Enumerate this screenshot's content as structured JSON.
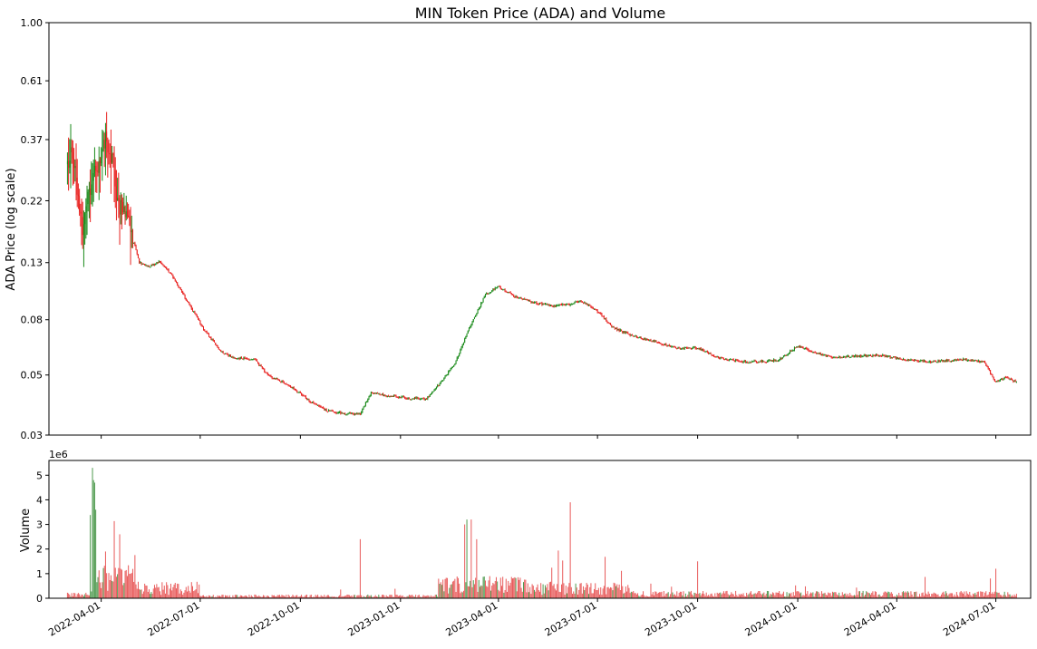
{
  "chart_data": {
    "type": "candlestick",
    "title": "MIN Token Price (ADA) and Volume",
    "price_panel": {
      "ylabel": "ADA Price (log scale)",
      "yscale": "log",
      "ylim": [
        0.03,
        1.0
      ],
      "yticks": [
        "0.03",
        "0.05",
        "0.08",
        "0.13",
        "0.22",
        "0.37",
        "0.61",
        "1.00"
      ],
      "ytick_values": [
        0.03,
        0.05,
        0.08,
        0.13,
        0.22,
        0.37,
        0.61,
        1.0
      ],
      "up_color": "#1a8a1a",
      "down_color": "#e8211f",
      "approx_close_path": [
        [
          "2022-03-01",
          0.3
        ],
        [
          "2022-03-05",
          0.34
        ],
        [
          "2022-03-10",
          0.25
        ],
        [
          "2022-03-15",
          0.18
        ],
        [
          "2022-03-20",
          0.22
        ],
        [
          "2022-03-25",
          0.27
        ],
        [
          "2022-04-01",
          0.31
        ],
        [
          "2022-04-05",
          0.38
        ],
        [
          "2022-04-08",
          0.33
        ],
        [
          "2022-04-12",
          0.3
        ],
        [
          "2022-04-15",
          0.21
        ],
        [
          "2022-04-22",
          0.21
        ],
        [
          "2022-04-30",
          0.16
        ],
        [
          "2022-05-06",
          0.13
        ],
        [
          "2022-05-15",
          0.126
        ],
        [
          "2022-05-25",
          0.131
        ],
        [
          "2022-06-05",
          0.117
        ],
        [
          "2022-06-20",
          0.092
        ],
        [
          "2022-07-05",
          0.073
        ],
        [
          "2022-07-20",
          0.061
        ],
        [
          "2022-08-01",
          0.058
        ],
        [
          "2022-08-20",
          0.057
        ],
        [
          "2022-09-01",
          0.05
        ],
        [
          "2022-09-20",
          0.046
        ],
        [
          "2022-10-10",
          0.04
        ],
        [
          "2022-10-25",
          0.037
        ],
        [
          "2022-11-10",
          0.036
        ],
        [
          "2022-11-25",
          0.036
        ],
        [
          "2022-12-05",
          0.043
        ],
        [
          "2022-12-20",
          0.042
        ],
        [
          "2023-01-10",
          0.041
        ],
        [
          "2023-01-25",
          0.041
        ],
        [
          "2023-02-05",
          0.046
        ],
        [
          "2023-02-20",
          0.055
        ],
        [
          "2023-03-01",
          0.068
        ],
        [
          "2023-03-10",
          0.082
        ],
        [
          "2023-03-20",
          0.099
        ],
        [
          "2023-04-01",
          0.106
        ],
        [
          "2023-04-15",
          0.098
        ],
        [
          "2023-05-01",
          0.093
        ],
        [
          "2023-05-20",
          0.09
        ],
        [
          "2023-06-05",
          0.091
        ],
        [
          "2023-06-15",
          0.094
        ],
        [
          "2023-07-01",
          0.086
        ],
        [
          "2023-07-15",
          0.075
        ],
        [
          "2023-08-01",
          0.07
        ],
        [
          "2023-08-20",
          0.067
        ],
        [
          "2023-09-10",
          0.063
        ],
        [
          "2023-10-01",
          0.063
        ],
        [
          "2023-10-20",
          0.058
        ],
        [
          "2023-11-10",
          0.056
        ],
        [
          "2023-12-01",
          0.056
        ],
        [
          "2023-12-15",
          0.057
        ],
        [
          "2024-01-01",
          0.064
        ],
        [
          "2024-01-15",
          0.061
        ],
        [
          "2024-02-01",
          0.058
        ],
        [
          "2024-03-01",
          0.059
        ],
        [
          "2024-03-20",
          0.059
        ],
        [
          "2024-04-10",
          0.057
        ],
        [
          "2024-05-01",
          0.056
        ],
        [
          "2024-06-01",
          0.057
        ],
        [
          "2024-06-20",
          0.056
        ],
        [
          "2024-07-01",
          0.047
        ],
        [
          "2024-07-10",
          0.049
        ],
        [
          "2024-07-20",
          0.047
        ]
      ]
    },
    "volume_panel": {
      "ylabel": "Volume",
      "scale_label": "1e6",
      "ylim": [
        0,
        5.6
      ],
      "yticks": [
        "0",
        "1",
        "2",
        "3",
        "4",
        "5"
      ],
      "ytick_values": [
        0,
        1,
        2,
        3,
        4,
        5
      ],
      "up_color": "#4f9a4f",
      "down_color": "#e85a5a",
      "notable_spikes": [
        [
          "2022-03-24",
          5.3
        ],
        [
          "2022-03-25",
          4.8
        ],
        [
          "2022-03-26",
          4.7
        ],
        [
          "2022-03-27",
          3.6
        ],
        [
          "2022-04-05",
          1.9
        ],
        [
          "2022-04-18",
          2.6
        ],
        [
          "2022-11-25",
          2.4
        ],
        [
          "2023-03-01",
          3.0
        ],
        [
          "2023-03-03",
          3.2
        ],
        [
          "2023-03-07",
          3.2
        ],
        [
          "2023-03-12",
          2.4
        ],
        [
          "2023-06-06",
          3.9
        ],
        [
          "2023-10-01",
          1.5
        ],
        [
          "2024-07-01",
          1.2
        ]
      ]
    },
    "x_axis": {
      "type": "date",
      "range": [
        "2022-02-12",
        "2024-08-02"
      ],
      "ticks": [
        "2022-04-01",
        "2022-07-01",
        "2022-10-01",
        "2023-01-01",
        "2023-04-01",
        "2023-07-01",
        "2023-10-01",
        "2024-01-01",
        "2024-04-01",
        "2024-07-01"
      ]
    }
  }
}
